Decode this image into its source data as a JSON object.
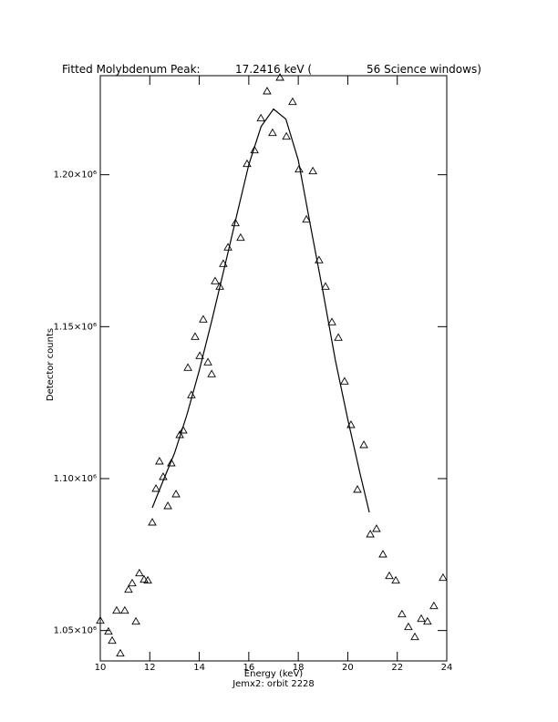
{
  "chart_data": {
    "type": "scatter",
    "title": "Fitted Molybdenum Peak:",
    "title_value": "17.2416 keV (",
    "title_windows": "56 Science windows)",
    "xlabel": "Energy (keV)",
    "xlabel2": "Jemx2: orbit 2228",
    "ylabel": "Detector counts",
    "xlim": [
      10,
      24
    ],
    "ylim": [
      1040000,
      1232600
    ],
    "xticks": [
      10,
      12,
      14,
      16,
      18,
      20,
      22,
      24
    ],
    "yticks": [
      {
        "value": 1050000,
        "label": "1.05×10⁶"
      },
      {
        "value": 1100000,
        "label": "1.10×10⁶"
      },
      {
        "value": 1150000,
        "label": "1.15×10⁶"
      },
      {
        "value": 1200000,
        "label": "1.20×10⁶"
      }
    ],
    "color": "#000000",
    "points": {
      "x": [
        10.0,
        10.33,
        10.48,
        10.66,
        10.81,
        10.99,
        11.14,
        11.29,
        11.44,
        11.58,
        11.77,
        11.92,
        12.1,
        12.25,
        12.39,
        12.54,
        12.73,
        12.87,
        13.06,
        13.21,
        13.35,
        13.54,
        13.68,
        13.83,
        14.02,
        14.16,
        14.35,
        14.5,
        14.64,
        14.83,
        14.97,
        15.16,
        15.46,
        15.67,
        15.93,
        16.23,
        16.49,
        16.74,
        16.96,
        17.26,
        17.52,
        17.77,
        18.03,
        18.33,
        18.59,
        18.84,
        19.1,
        19.36,
        19.62,
        19.87,
        20.13,
        20.39,
        20.65,
        20.91,
        21.16,
        21.42,
        21.68,
        21.94,
        22.19,
        22.45,
        22.71,
        22.97,
        23.22,
        23.48,
        23.85
      ],
      "y": [
        1053300,
        1049700,
        1046700,
        1056600,
        1042500,
        1056600,
        1063500,
        1065600,
        1053000,
        1068900,
        1066800,
        1066500,
        1085600,
        1096700,
        1105700,
        1100600,
        1091000,
        1105100,
        1094900,
        1114400,
        1115900,
        1136500,
        1127500,
        1146700,
        1140400,
        1152400,
        1138300,
        1134400,
        1165000,
        1163200,
        1170700,
        1176100,
        1184100,
        1179300,
        1203600,
        1208100,
        1218600,
        1227500,
        1213800,
        1232000,
        1212600,
        1224000,
        1201800,
        1185300,
        1201200,
        1171900,
        1163200,
        1151500,
        1146400,
        1132000,
        1117700,
        1096400,
        1111100,
        1081700,
        1083500,
        1075100,
        1068000,
        1066500,
        1055400,
        1051200,
        1047900,
        1053900,
        1053000,
        1058100,
        1067400
      ]
    },
    "fit": {
      "x": [
        12.1,
        12.5,
        13.0,
        13.5,
        14.0,
        14.5,
        15.0,
        15.5,
        16.0,
        16.5,
        17.0,
        17.5,
        18.0,
        18.5,
        19.0,
        19.5,
        20.0,
        20.5,
        20.87
      ],
      "y": [
        1090400,
        1098500,
        1108400,
        1121000,
        1135600,
        1151800,
        1168900,
        1186200,
        1203300,
        1215900,
        1221600,
        1218300,
        1204800,
        1182900,
        1161400,
        1138900,
        1119500,
        1101500,
        1088900
      ]
    }
  }
}
